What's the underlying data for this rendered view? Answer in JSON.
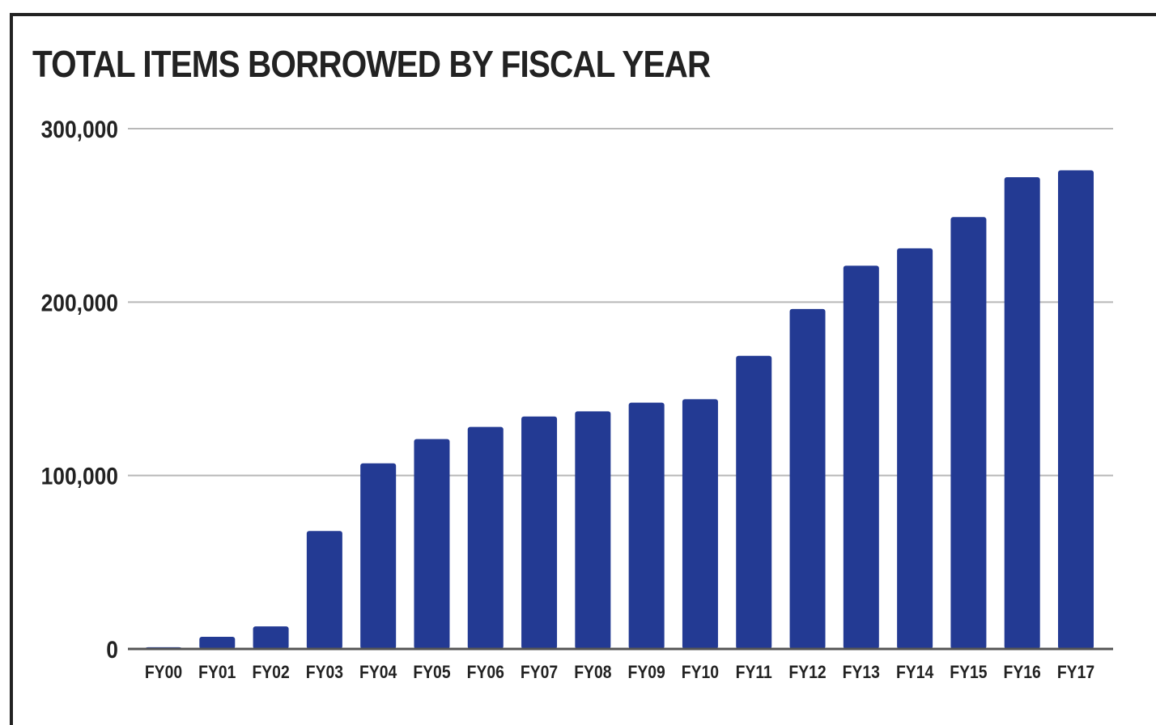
{
  "chart_data": {
    "type": "bar",
    "title": "TOTAL ITEMS BORROWED BY FISCAL YEAR",
    "xlabel": "",
    "ylabel": "",
    "categories": [
      "FY00",
      "FY01",
      "FY02",
      "FY03",
      "FY04",
      "FY05",
      "FY06",
      "FY07",
      "FY08",
      "FY09",
      "FY10",
      "FY11",
      "FY12",
      "FY13",
      "FY14",
      "FY15",
      "FY16",
      "FY17"
    ],
    "values": [
      1000,
      7000,
      13000,
      68000,
      107000,
      121000,
      128000,
      134000,
      137000,
      142000,
      144000,
      169000,
      196000,
      221000,
      231000,
      249000,
      272000,
      276000
    ],
    "ylim": [
      0,
      300000
    ],
    "yticks": [
      0,
      100000,
      200000,
      300000
    ],
    "ytick_labels": [
      "0",
      "100,000",
      "200,000",
      "300,000"
    ],
    "grid": true,
    "legend": "none",
    "colors": {
      "bar": "#233a93",
      "grid": "#b8b8b8",
      "axis": "#555555",
      "text": "#222222"
    }
  }
}
